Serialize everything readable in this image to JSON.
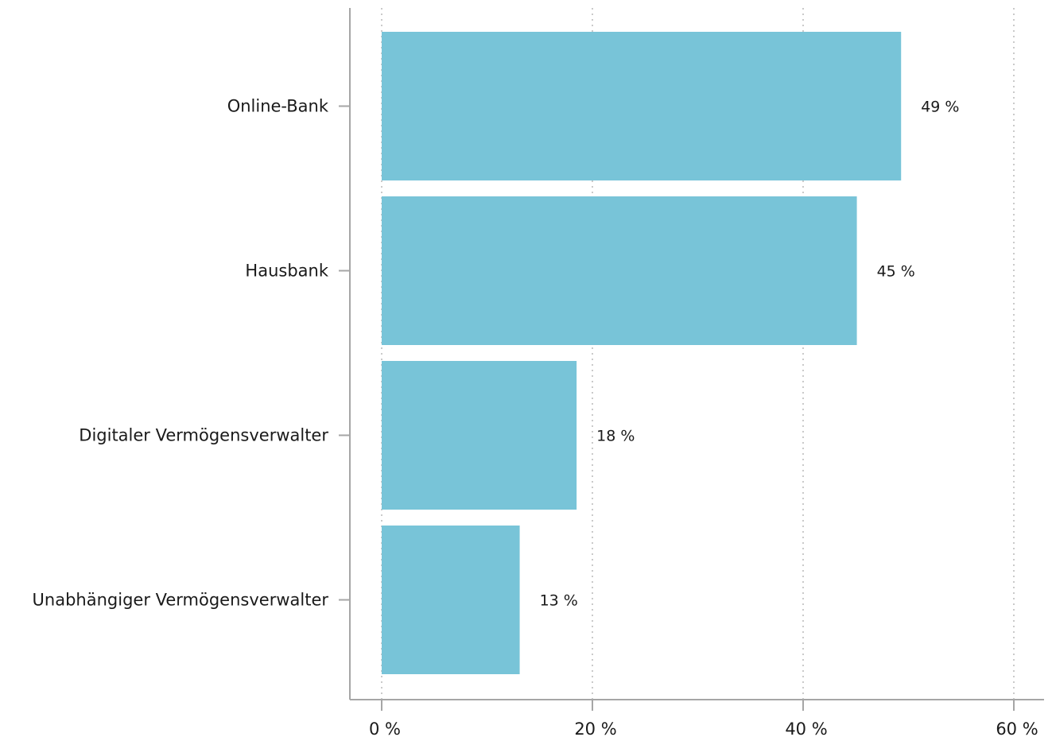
{
  "chart_data": {
    "type": "bar",
    "orientation": "horizontal",
    "categories": [
      "Online-Bank",
      "Hausbank",
      "Digitaler Vermögensverwalter",
      "Unabhängiger Vermögensverwalter"
    ],
    "values": [
      49.3,
      45.1,
      18.5,
      13.1
    ],
    "value_labels": [
      "49 %",
      "45 %",
      "18 %",
      "13 %"
    ],
    "x_ticks": [
      0,
      20,
      40,
      60
    ],
    "x_tick_labels": [
      "0 %",
      "20 %",
      "40 %",
      "60 %"
    ],
    "xlim": [
      0,
      60
    ],
    "grid": "vertical-dotted",
    "title": "",
    "xlabel": "",
    "ylabel": "",
    "colors": {
      "bar": "#78c4d8",
      "axis": "#a6a6a6",
      "grid": "#b8b8b8",
      "text": "#1a1a1a"
    }
  }
}
